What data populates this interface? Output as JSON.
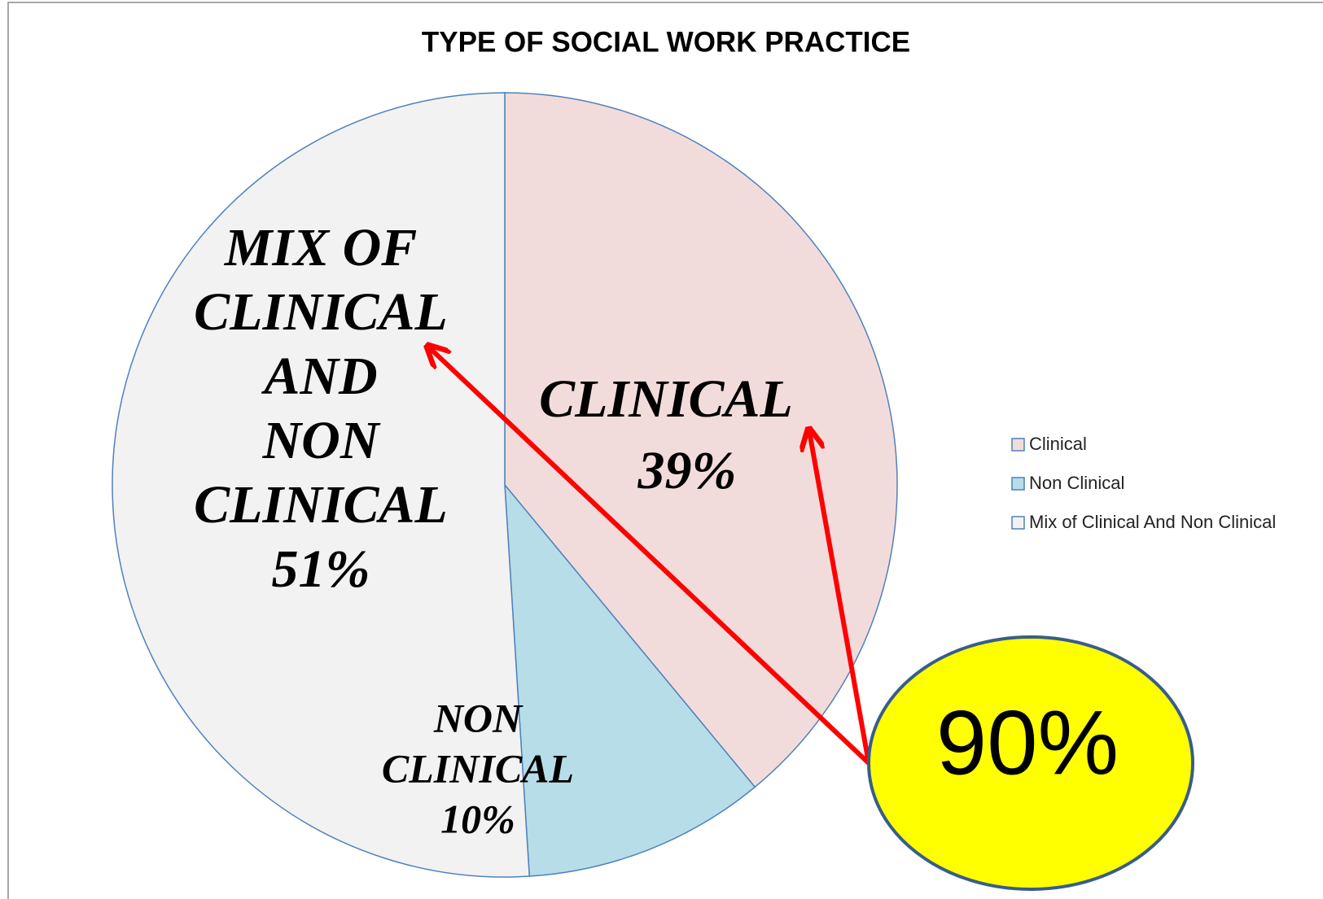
{
  "chart_data": {
    "type": "pie",
    "title": "TYPE OF SOCIAL WORK PRACTICE",
    "categories": [
      "Clinical",
      "Non Clinical",
      "Mix of Clinical And Non Clinical"
    ],
    "values": [
      39,
      10,
      51
    ],
    "value_labels": [
      "39%",
      "10%",
      "51%"
    ],
    "label_lines": [
      [
        "CLINICAL"
      ],
      [
        "NON",
        "CLINICAL"
      ],
      [
        "MIX OF",
        "CLINICAL",
        "AND",
        "NON",
        "CLINICAL"
      ]
    ],
    "colors": [
      "#f2dcdb",
      "#b7dde8",
      "#f2f2f2"
    ],
    "legend": "right",
    "annotation": {
      "text": "90%"
    }
  }
}
